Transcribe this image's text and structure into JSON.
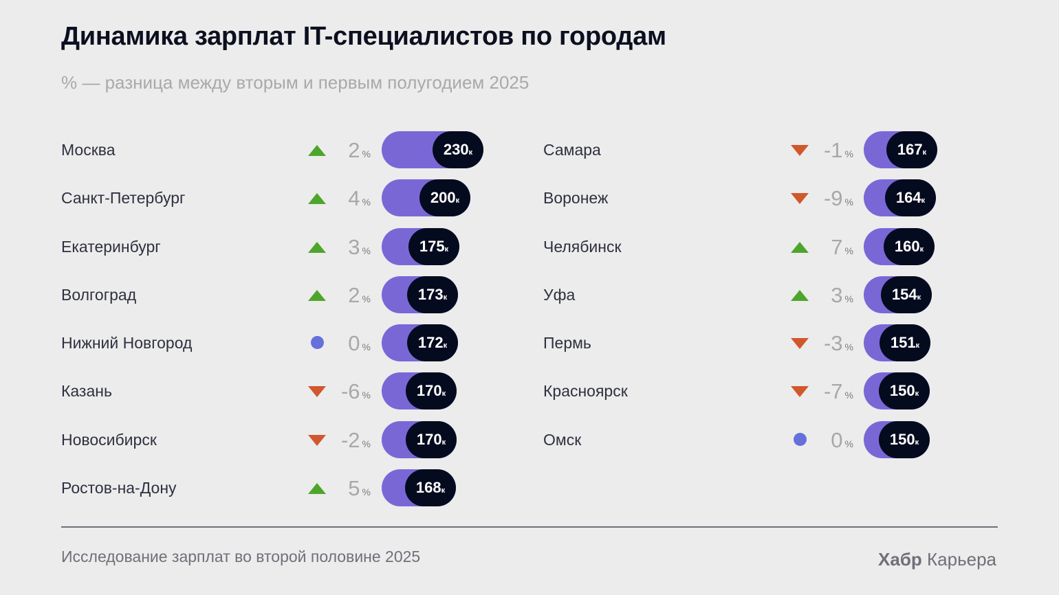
{
  "title": "Динамика зарплат IT-специалистов по городам",
  "subtitle": "% — разница между вторым и первым полугодием 2025",
  "footer": "Исследование зарплат во второй половине 2025",
  "brand": {
    "bold": "Хабр",
    "regular": "Карьера"
  },
  "colors": {
    "up": "#4ea52c",
    "down": "#d0582c",
    "neutral": "#6570db",
    "bar": "#7a67d6",
    "value_pill": "#050b1f"
  },
  "chart_data": {
    "type": "bar",
    "value_unit": "к",
    "change_unit": "%",
    "columns": [
      [
        {
          "city": "Москва",
          "change": 2,
          "trend": "up",
          "salary": 230
        },
        {
          "city": "Санкт-Петербург",
          "change": 4,
          "trend": "up",
          "salary": 200
        },
        {
          "city": "Екатеринбург",
          "change": 3,
          "trend": "up",
          "salary": 175
        },
        {
          "city": "Волгоград",
          "change": 2,
          "trend": "up",
          "salary": 173
        },
        {
          "city": "Нижний Новгород",
          "change": 0,
          "trend": "neutral",
          "salary": 172
        },
        {
          "city": "Казань",
          "change": -6,
          "trend": "down",
          "salary": 170
        },
        {
          "city": "Новосибирск",
          "change": -2,
          "trend": "down",
          "salary": 170
        },
        {
          "city": "Ростов-на-Дону",
          "change": 5,
          "trend": "up",
          "salary": 168
        }
      ],
      [
        {
          "city": "Самара",
          "change": -1,
          "trend": "down",
          "salary": 167
        },
        {
          "city": "Воронеж",
          "change": -9,
          "trend": "down",
          "salary": 164
        },
        {
          "city": "Челябинск",
          "change": 7,
          "trend": "up",
          "salary": 160
        },
        {
          "city": "Уфа",
          "change": 3,
          "trend": "up",
          "salary": 154
        },
        {
          "city": "Пермь",
          "change": -3,
          "trend": "down",
          "salary": 151
        },
        {
          "city": "Красноярск",
          "change": -7,
          "trend": "down",
          "salary": 150
        },
        {
          "city": "Омск",
          "change": 0,
          "trend": "neutral",
          "salary": 150
        }
      ]
    ]
  }
}
